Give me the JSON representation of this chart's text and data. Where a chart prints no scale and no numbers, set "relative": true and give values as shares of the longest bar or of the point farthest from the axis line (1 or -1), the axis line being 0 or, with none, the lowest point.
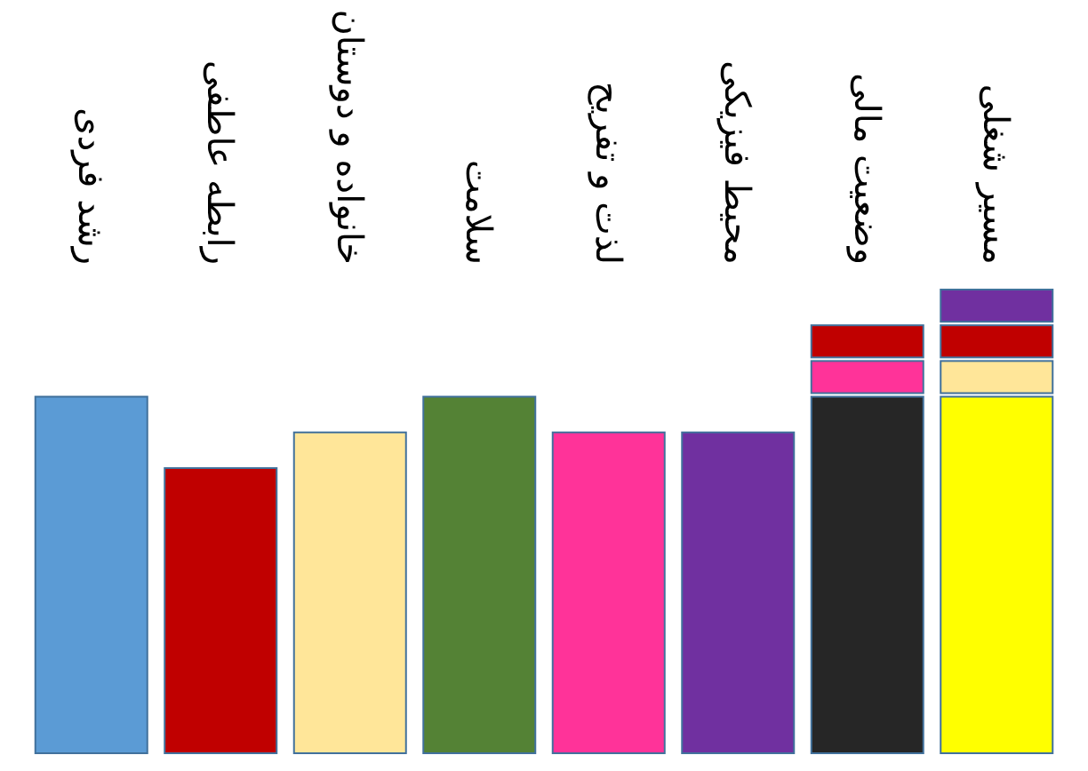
{
  "chart_data": {
    "type": "bar",
    "stacked": true,
    "relative": true,
    "categories": [
      "رشد فردی",
      "رابطه عاطفی",
      "خانواده و دوستان",
      "سلامت",
      "لذت و تفریح",
      "محیط فیزیکی",
      "وضعیت مالی",
      "مسیر شغلی"
    ],
    "series": [
      {
        "colors": [
          "#5b9bd5",
          "#c00000",
          "#ffe699",
          "#548235",
          "#ff3399",
          "#7030a0",
          "#262626",
          "#ffff00"
        ],
        "values": [
          0.769,
          0.615,
          0.692,
          0.769,
          0.692,
          0.692,
          0.769,
          0.769
        ]
      },
      {
        "colors": [
          null,
          null,
          null,
          null,
          null,
          null,
          "#ff3399",
          "#ffe699"
        ],
        "values": [
          null,
          null,
          null,
          null,
          null,
          null,
          0.077,
          0.077
        ]
      },
      {
        "colors": [
          null,
          null,
          null,
          null,
          null,
          null,
          "#c00000",
          "#c00000"
        ],
        "values": [
          null,
          null,
          null,
          null,
          null,
          null,
          0.077,
          0.077
        ]
      },
      {
        "colors": [
          null,
          null,
          null,
          null,
          null,
          null,
          null,
          "#7030a0"
        ],
        "values": [
          null,
          null,
          null,
          null,
          null,
          null,
          null,
          0.077
        ]
      }
    ]
  }
}
